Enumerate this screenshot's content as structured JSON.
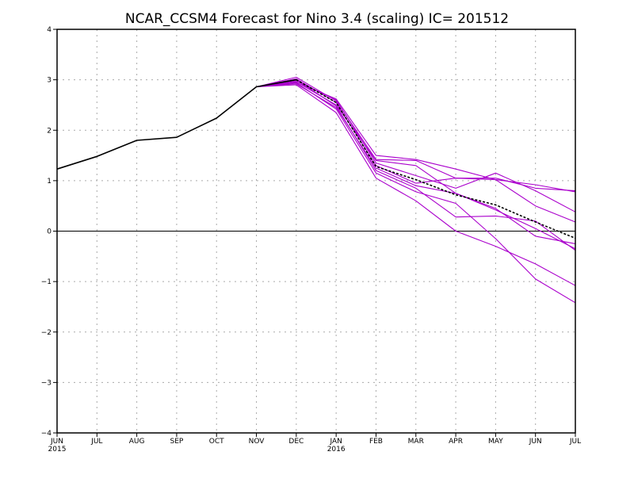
{
  "chart_data": {
    "type": "line",
    "title": "NCAR_CCSM4 Forecast for Nino 3.4 (scaling)  IC= 201512",
    "xlabel": "",
    "ylabel": "",
    "x_ticks": [
      "JUN",
      "JUL",
      "AUG",
      "SEP",
      "OCT",
      "NOV",
      "DEC",
      "JAN",
      "FEB",
      "MAR",
      "APR",
      "MAY",
      "JUN",
      "JUL"
    ],
    "x_year_labels": [
      {
        "index": 0,
        "label": "2015"
      },
      {
        "index": 7,
        "label": "2016"
      }
    ],
    "y_ticks": [
      "4",
      "3",
      "2",
      "1",
      "0",
      "−1",
      "−2",
      "−3",
      "−4"
    ],
    "ylim": [
      -4,
      4
    ],
    "grid": true,
    "observed": {
      "color": "#000000",
      "x_index": [
        0,
        1,
        2,
        3,
        4,
        5,
        6
      ],
      "values": [
        1.23,
        1.48,
        1.8,
        1.86,
        2.24,
        2.86,
        3.0
      ]
    },
    "ensemble_mean": {
      "color": "#000000",
      "style": "dashed",
      "x_index": [
        6,
        7,
        8,
        9,
        10,
        11,
        12,
        13
      ],
      "values": [
        3.0,
        2.55,
        1.28,
        1.02,
        0.72,
        0.52,
        0.18,
        -0.14
      ]
    },
    "members_color": "#aa00cc",
    "members": [
      {
        "x_index": [
          5,
          6,
          7,
          8,
          9,
          10,
          11,
          12,
          13
        ],
        "values": [
          2.86,
          2.95,
          2.62,
          1.5,
          1.42,
          1.23,
          1.02,
          0.92,
          0.78
        ]
      },
      {
        "x_index": [
          5,
          6,
          7,
          8,
          9,
          10,
          11,
          12,
          13
        ],
        "values": [
          2.86,
          3.05,
          2.58,
          1.42,
          1.4,
          1.05,
          1.05,
          0.85,
          0.8
        ]
      },
      {
        "x_index": [
          5,
          6,
          7,
          8,
          9,
          10,
          11,
          12,
          13
        ],
        "values": [
          2.86,
          2.98,
          2.6,
          1.35,
          1.1,
          0.85,
          1.15,
          0.8,
          0.38
        ]
      },
      {
        "x_index": [
          5,
          6,
          7,
          8,
          9,
          10,
          11,
          12,
          13
        ],
        "values": [
          2.86,
          3.02,
          2.55,
          1.3,
          0.95,
          1.05,
          1.02,
          0.5,
          0.18
        ]
      },
      {
        "x_index": [
          5,
          6,
          7,
          8,
          9,
          10,
          11,
          12,
          13
        ],
        "values": [
          2.86,
          2.96,
          2.5,
          1.4,
          1.3,
          0.75,
          0.45,
          -0.1,
          -0.25
        ]
      },
      {
        "x_index": [
          5,
          6,
          7,
          8,
          9,
          10,
          11,
          12,
          13
        ],
        "values": [
          2.86,
          2.92,
          2.45,
          1.25,
          0.9,
          0.75,
          0.42,
          0.05,
          -0.35
        ]
      },
      {
        "x_index": [
          5,
          6,
          7,
          8,
          9,
          10,
          11,
          12,
          13
        ],
        "values": [
          2.86,
          3.0,
          2.48,
          1.2,
          0.85,
          0.28,
          0.3,
          0.2,
          -0.38
        ]
      },
      {
        "x_index": [
          5,
          6,
          7,
          8,
          9,
          10,
          11,
          12,
          13
        ],
        "values": [
          2.86,
          2.94,
          2.42,
          1.15,
          0.78,
          0.55,
          -0.15,
          -0.95,
          -1.42
        ]
      },
      {
        "x_index": [
          5,
          6,
          7,
          8,
          9,
          10,
          11,
          12,
          13
        ],
        "values": [
          2.86,
          2.9,
          2.35,
          1.05,
          0.6,
          0.0,
          -0.3,
          -0.65,
          -1.08
        ]
      }
    ]
  }
}
